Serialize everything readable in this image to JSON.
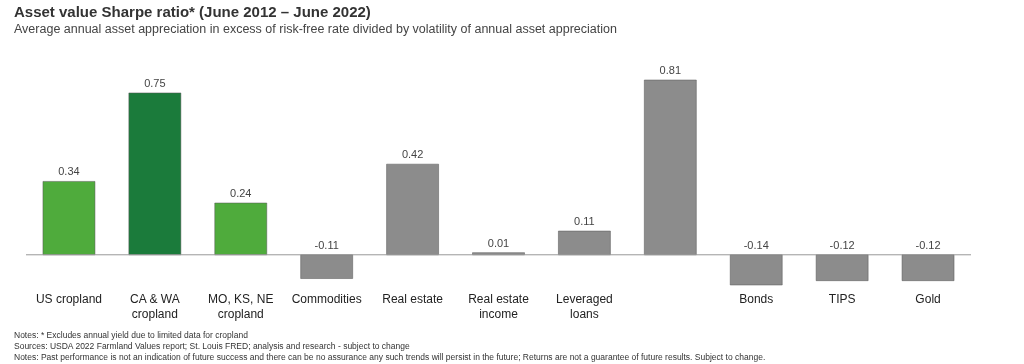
{
  "chart_data": {
    "type": "bar",
    "title": "Asset value Sharpe ratio* (June 2012 – June 2022)",
    "subtitle": "Average annual asset appreciation in excess of risk-free rate divided by volatility of annual asset appreciation",
    "categories": [
      "US cropland",
      "CA & WA cropland",
      "MO, KS, NE cropland",
      "Commodities",
      "Real estate",
      "Real estate income",
      "Leveraged loans",
      null,
      "Bonds",
      "TIPS",
      "Gold"
    ],
    "values": [
      0.34,
      0.75,
      0.24,
      -0.11,
      0.42,
      0.01,
      0.11,
      0.81,
      -0.14,
      -0.12,
      -0.12
    ],
    "colors": [
      "#4fab3c",
      "#1b7b3b",
      "#4fab3c",
      "#8c8c8c",
      "#8c8c8c",
      "#8c8c8c",
      "#8c8c8c",
      "#8c8c8c",
      "#8c8c8c",
      "#8c8c8c",
      "#8c8c8c"
    ],
    "data_labels": true,
    "annotations": [
      "Notes: * Excludes annual yield due to limited data for cropland",
      "Sources: USDA 2022 Farmland Values report; St. Louis FRED; analysis and research - subject to change",
      "Notes: Past performance is not an indication of future success and there can be no assurance any such trends will persist in the future; Returns are not a guarantee of future results. Subject to change."
    ]
  }
}
